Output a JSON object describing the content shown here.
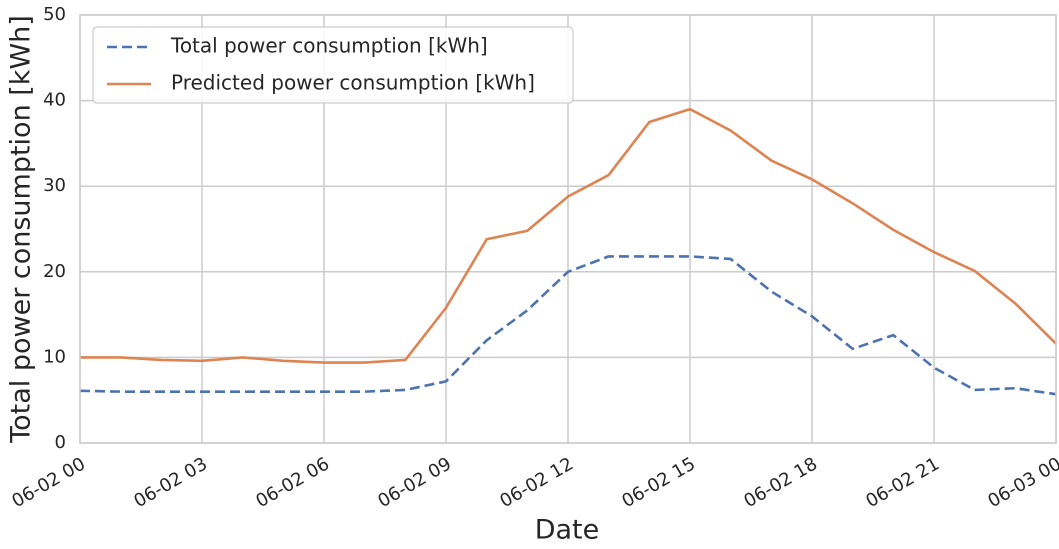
{
  "chart_data": {
    "type": "line",
    "xlabel": "Date",
    "ylabel": "Total power consumption [kWh]",
    "categories": [
      "06-02 00",
      null,
      null,
      "06-02 03",
      null,
      null,
      "06-02 06",
      null,
      null,
      "06-02 09",
      null,
      null,
      "06-02 12",
      null,
      null,
      "06-02 15",
      null,
      null,
      "06-02 18",
      null,
      null,
      "06-02 21",
      null,
      null,
      "06-03 00"
    ],
    "series": [
      {
        "name": "Total power consumption [kWh]",
        "color": "#4c72b0",
        "dashed": true,
        "values": [
          6.1,
          6.0,
          6.0,
          6.0,
          6.0,
          6.0,
          6.0,
          6.0,
          6.2,
          7.2,
          12.0,
          15.5,
          20.0,
          21.8,
          21.8,
          21.8,
          21.5,
          17.7,
          14.8,
          11.0,
          12.6,
          8.8,
          6.2,
          6.4,
          5.7
        ]
      },
      {
        "name": "Predicted power consumption [kWh]",
        "color": "#dd8452",
        "dashed": false,
        "values": [
          10.0,
          10.0,
          9.7,
          9.6,
          10.0,
          9.6,
          9.4,
          9.4,
          9.7,
          15.8,
          23.8,
          24.8,
          28.8,
          31.3,
          37.5,
          39.0,
          36.5,
          33.0,
          30.8,
          28.0,
          24.9,
          22.3,
          20.1,
          16.3,
          11.6
        ]
      }
    ],
    "ylim": [
      0,
      50
    ],
    "yticks": [
      0,
      10,
      20,
      30,
      40,
      50
    ],
    "grid": true,
    "legend": "upper left"
  }
}
